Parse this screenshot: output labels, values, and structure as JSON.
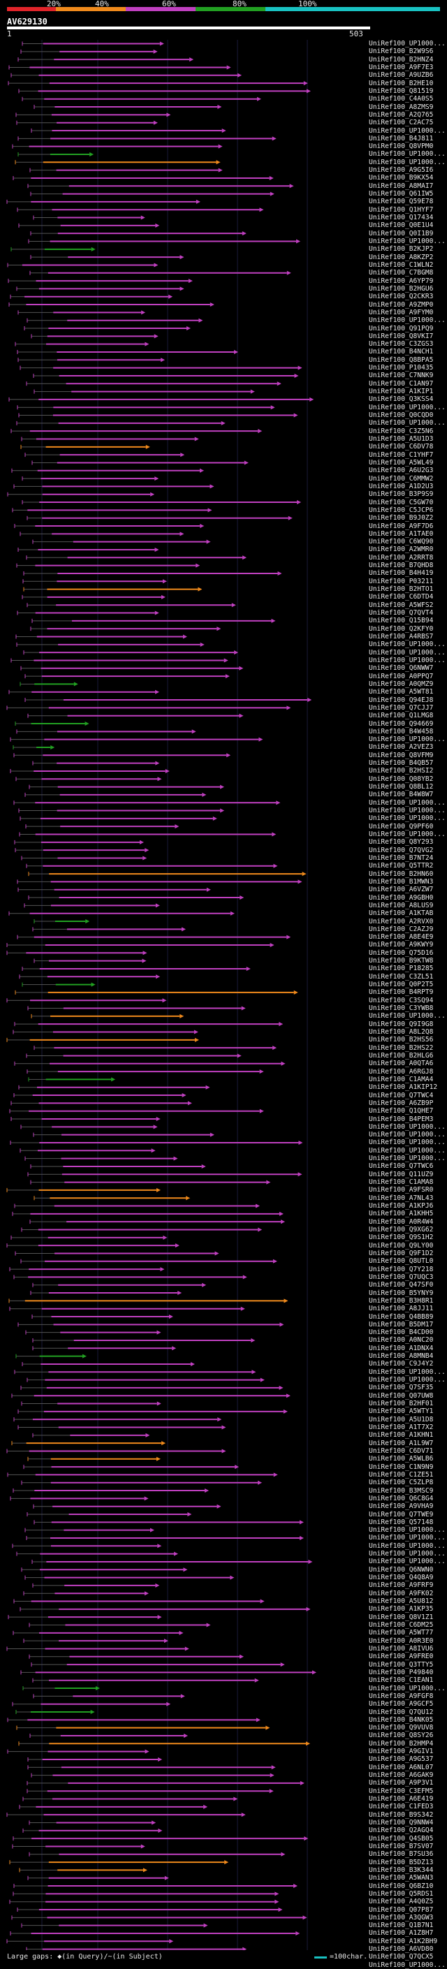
{
  "legend": {
    "ticks": [
      "20%",
      "40%",
      "60%",
      "80%",
      "100%"
    ],
    "colors": [
      "#e0242a",
      "#f08a1c",
      "#c040c0",
      "#22a022",
      "#19c2c2"
    ]
  },
  "query": {
    "id": "AV629130",
    "start": "1",
    "end": "503"
  },
  "footer": {
    "text": "Large gaps: ◆(in Query)/~(in Subject)",
    "scale": "=100char."
  },
  "hits": [
    "UniRef100_UP1000...",
    "UniRef100_B2W9S6",
    "UniRef100_B2HNZ4",
    "UniRef100_A9F7E3",
    "UniRef100_A9UZB6",
    "UniRef100_B2HE10",
    "UniRef100_Q81519",
    "UniRef100_C4A0S5",
    "UniRef100_A8ZMS9",
    "UniRef100_A2Q765",
    "UniRef100_C2AC75",
    "UniRef100_UP1000...",
    "UniRef100_B4J811",
    "UniRef100_Q8VPM0",
    "UniRef100_UP1000...",
    "UniRef100_UP1000...",
    "UniRef100_A9G5I6",
    "UniRef100_B9KX54",
    "UniRef100_A8MAI7",
    "UniRef100_Q61IW5",
    "UniRef100_Q59E78",
    "UniRef100_Q1HYF7",
    "UniRef100_Q17434",
    "UniRef100_Q0E1U4",
    "UniRef100_Q0I1B9",
    "UniRef100_UP1000...",
    "UniRef100_B2KJP2",
    "UniRef100_A8KZP2",
    "UniRef100_C1WLN2",
    "UniRef100_C7BGM8",
    "UniRef100_A6YP79",
    "UniRef100_B2HGU6",
    "UniRef100_Q2CKR3",
    "UniRef100_A9ZMP0",
    "UniRef100_A9FYM0",
    "UniRef100_UP1000...",
    "UniRef100_Q91PQ9",
    "UniRef100_Q8VKI7",
    "UniRef100_C3ZGS3",
    "UniRef100_B4NCH1",
    "UniRef100_Q8BPA5",
    "UniRef100_P10435",
    "UniRef100_C7NNK9",
    "UniRef100_C1AN97",
    "UniRef100_A1KIP1",
    "UniRef100_Q3KSS4",
    "UniRef100_UP1000...",
    "UniRef100_Q0CQD0",
    "UniRef100_UP1000...",
    "UniRef100_C3Z5N6",
    "UniRef100_A5U1D3",
    "UniRef100_C6DV78",
    "UniRef100_C1YHF7",
    "UniRef100_A5WL49",
    "UniRef100_A6U2G3",
    "UniRef100_C6MMW2",
    "UniRef100_A1D2U3",
    "UniRef100_B3P9S9",
    "UniRef100_C5GW70",
    "UniRef100_C5JCP6",
    "UniRef100_B9J0Z2",
    "UniRef100_A9F7D6",
    "UniRef100_A1TAE0",
    "UniRef100_C6WQ90",
    "UniRef100_A2WMR0",
    "UniRef100_A2RRT8",
    "UniRef100_B7QHD8",
    "UniRef100_B4H419",
    "UniRef100_P03211",
    "UniRef100_B2HTO1",
    "UniRef100_C6DTD4",
    "UniRef100_A5WFS2",
    "UniRef100_Q7QVT4",
    "UniRef100_Q15B94",
    "UniRef100_Q2KFY0",
    "UniRef100_A4RBS7",
    "UniRef100_UP1000...",
    "UniRef100_UP1000...",
    "UniRef100_UP1000...",
    "UniRef100_Q6NWW7",
    "UniRef100_A0PPQ7",
    "UniRef100_A0QMZ9",
    "UniRef100_A5WT81",
    "UniRef100_Q94EJ8",
    "UniRef100_Q7CJJ7",
    "UniRef100_Q1LMG8",
    "UniRef100_Q94669",
    "UniRef100_B4W458",
    "UniRef100_UP1000...",
    "UniRef100_A2VEZ3",
    "UniRef100_Q8VFM9",
    "UniRef100_B4QB57",
    "UniRef100_B2HSI2",
    "UniRef100_Q08YB2",
    "UniRef100_Q8BL12",
    "UniRef100_B4W8W7",
    "UniRef100_UP1000...",
    "UniRef100_UP1000...",
    "UniRef100_UP1000...",
    "UniRef100_Q9PF60",
    "UniRef100_UP1000...",
    "UniRef100_Q8Y293",
    "UniRef100_Q7QVG2",
    "UniRef100_B7NT24",
    "UniRef100_Q5TTR2",
    "UniRef100_B2HN60",
    "UniRef100_B1MWN3",
    "UniRef100_A6VZW7",
    "UniRef100_A9GBH0",
    "UniRef100_A8LUS9",
    "UniRef100_A1KTAB",
    "UniRef100_A2RVX0",
    "UniRef100_C2AZJ9",
    "UniRef100_A8E4E9",
    "UniRef100_A9KWY9",
    "UniRef100_Q75D16",
    "UniRef100_B9KTW8",
    "UniRef100_P18285",
    "UniRef100_C3ZL51",
    "UniRef100_Q0P2T5",
    "UniRef100_B4RPT9",
    "UniRef100_C3SQ94",
    "UniRef100_C3YWB8",
    "UniRef100_UP1000...",
    "UniRef100_Q9I9G8",
    "UniRef100_A8L2Q8",
    "UniRef100_B2HS56",
    "UniRef100_B2HS22",
    "UniRef100_B2HLG6",
    "UniRef100_A0QTA6",
    "UniRef100_A6RGJ8",
    "UniRef100_C1AMA4",
    "UniRef100_A1KIP12",
    "UniRef100_Q7TWC4",
    "UniRef100_A6ZB9P",
    "UniRef100_Q1QHE7",
    "UniRef100_B4PEM3",
    "UniRef100_UP1000...",
    "UniRef100_UP1000...",
    "UniRef100_UP1000...",
    "UniRef100_UP1000...",
    "UniRef100_UP1000...",
    "UniRef100_Q7TWC6",
    "UniRef100_Q11UZ9",
    "UniRef100_C1AMA8",
    "UniRef100_A9FSR0",
    "UniRef100_A7NL43",
    "UniRef100_A1KPJ6",
    "UniRef100_A1KHH5",
    "UniRef100_A0R4W4",
    "UniRef100_Q9XG62",
    "UniRef100_Q9S1H2",
    "UniRef100_Q9LY00",
    "UniRef100_Q9F1D2",
    "UniRef100_Q8UTL0",
    "UniRef100_Q7Y218",
    "UniRef100_Q7UQC3",
    "UniRef100_Q47SF0",
    "UniRef100_B5YNY9",
    "UniRef100_B3H8R1",
    "UniRef100_A8JJ11",
    "UniRef100_Q4BB89",
    "UniRef100_B5DM17",
    "UniRef100_B4CD00",
    "UniRef100_A0NC20",
    "UniRef100_A1DNX4",
    "UniRef100_A8MNB4",
    "UniRef100_C9J4Y2",
    "UniRef100_UP1000...",
    "UniRef100_UP1000...",
    "UniRef100_Q7SF35",
    "UniRef100_Q07UW8",
    "UniRef100_B2HF01",
    "UniRef100_A5WTY1",
    "UniRef100_A5U1D8",
    "UniRef100_A1T7X2",
    "UniRef100_A1KHN1",
    "UniRef100_A1L9W7",
    "UniRef100_C6DV71",
    "UniRef100_A5WLB6",
    "UniRef100_C1N9N9",
    "UniRef100_C1ZE51",
    "UniRef100_C5ZLP8",
    "UniRef100_B3MSC9",
    "UniRef100_Q6C8G4",
    "UniRef100_A9VHA9",
    "UniRef100_Q7TWE9",
    "UniRef100_Q57148",
    "UniRef100_UP1000...",
    "UniRef100_UP1000...",
    "UniRef100_UP1000...",
    "UniRef100_UP1000...",
    "UniRef100_UP1000...",
    "UniRef100_Q6NWN0",
    "UniRef100_Q4Q8A9",
    "UniRef100_A9FRF9",
    "UniRef100_A9FK02",
    "UniRef100_A5U812",
    "UniRef100_A1KP35",
    "UniRef100_Q8V1Z1",
    "UniRef100_C6DM25",
    "UniRef100_A5WT77",
    "UniRef100_A0R3E0",
    "UniRef100_A8IVU6",
    "UniRef100_A9FRE0",
    "UniRef100_Q3TTY5",
    "UniRef100_P49840",
    "UniRef100_C1EAN1",
    "UniRef100_UP1000...",
    "UniRef100_A9FGF8",
    "UniRef100_A9GCF5",
    "UniRef100_Q7QU12",
    "UniRef100_B4NK05",
    "UniRef100_Q9VUV8",
    "UniRef100_Q8SY26",
    "UniRef100_B2HMP4",
    "UniRef100_A9GIV1",
    "UniRef100_A9G537",
    "UniRef100_A6NL07",
    "UniRef100_A6GAK9",
    "UniRef100_A9P3V1",
    "UniRef100_C3EFM5",
    "UniRef100_A6E419",
    "UniRef100_C1FED3",
    "UniRef100_B9S342",
    "UniRef100_Q9NNW4",
    "UniRef100_Q2AGQ4",
    "UniRef100_Q4SB05",
    "UniRef100_B7SV07",
    "UniRef100_B7SU36",
    "UniRef100_B5DZ13",
    "UniRef100_B3K344",
    "UniRef100_A5WAN3",
    "UniRef100_Q6BZ10",
    "UniRef100_Q5RDS1",
    "UniRef100_A4Q0Z5",
    "UniRef100_Q07P87",
    "UniRef100_A3QGW3",
    "UniRef100_Q1B7N1",
    "UniRef100_A1Z8H7",
    "UniRef100_A1K2BH9",
    "UniRef100_A6VD80",
    "UniRef100_Q7QCX5",
    "UniRef100_UP1000..."
  ]
}
